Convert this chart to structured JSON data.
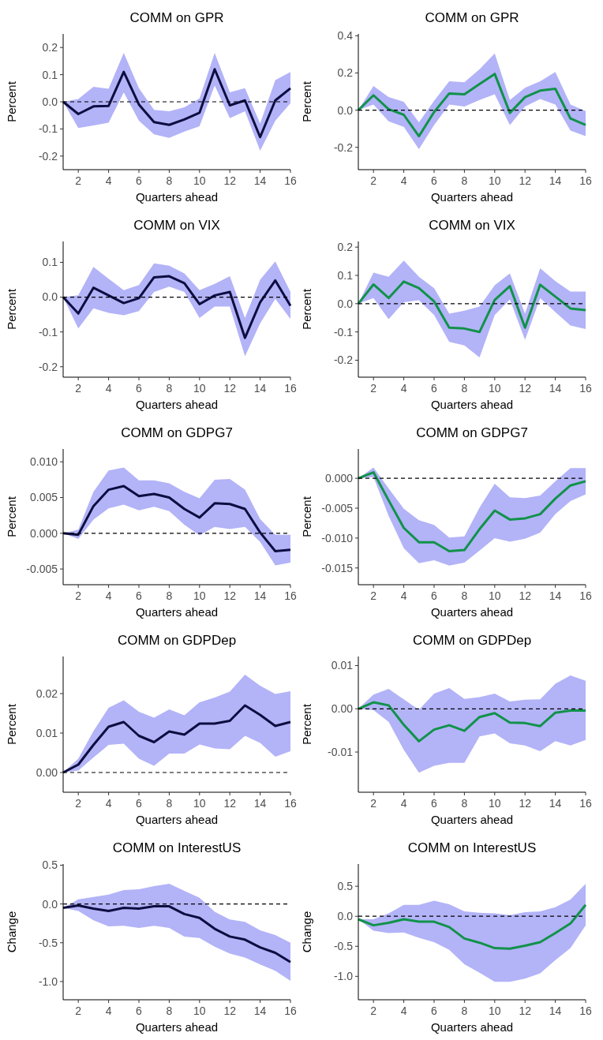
{
  "chart_data": [
    {
      "type": "line",
      "title": "COMM on GPR",
      "xlabel": "Quarters ahead",
      "ylabel": "Percent",
      "x": [
        1,
        2,
        3,
        4,
        5,
        6,
        7,
        8,
        9,
        10,
        11,
        12,
        13,
        14,
        15,
        16
      ],
      "xlim": [
        1,
        16
      ],
      "xticks": [
        2,
        4,
        6,
        8,
        10,
        12,
        14,
        16
      ],
      "ylim": [
        -0.25,
        0.25
      ],
      "yticks": [
        -0.2,
        -0.1,
        {
          "value": 0,
          "label": "0.0"
        },
        0.1,
        0.2
      ],
      "ref_lines": [
        {
          "axis": "y",
          "value": 0,
          "line_style": "dashed"
        }
      ],
      "series": [
        {
          "color": "#0d0d40",
          "values": [
            0,
            -0.045,
            -0.017,
            -0.015,
            0.11,
            -0.01,
            -0.075,
            -0.085,
            -0.065,
            -0.04,
            0.12,
            -0.013,
            0.005,
            -0.13,
            0.005,
            0.05
          ],
          "lower": [
            0,
            -0.097,
            -0.087,
            -0.077,
            0.035,
            -0.07,
            -0.12,
            -0.133,
            -0.11,
            -0.09,
            0.06,
            -0.06,
            -0.035,
            -0.18,
            -0.07,
            -0.005
          ],
          "upper": [
            0,
            0.01,
            0.055,
            0.048,
            0.18,
            0.05,
            -0.03,
            -0.035,
            -0.02,
            0.012,
            0.18,
            0.035,
            0.05,
            -0.08,
            0.08,
            0.11
          ]
        }
      ]
    },
    {
      "type": "line",
      "title": "COMM on GPR",
      "xlabel": "Quarters ahead",
      "ylabel": "Percent",
      "x": [
        1,
        2,
        3,
        4,
        5,
        6,
        7,
        8,
        9,
        10,
        11,
        12,
        13,
        14,
        15,
        16
      ],
      "xlim": [
        1,
        16
      ],
      "xticks": [
        2,
        4,
        6,
        8,
        10,
        12,
        14,
        16
      ],
      "ylim": [
        -0.32,
        0.41
      ],
      "yticks": [
        -0.2,
        {
          "value": 0,
          "label": "0.0"
        },
        0.2,
        0.4
      ],
      "ref_lines": [
        {
          "axis": "y",
          "value": 0,
          "line_style": "dashed"
        }
      ],
      "series": [
        {
          "color": "#11924a",
          "values": [
            0,
            0.08,
            0.005,
            -0.025,
            -0.14,
            -0.01,
            0.09,
            0.085,
            0.14,
            0.195,
            -0.015,
            0.07,
            0.105,
            0.115,
            -0.045,
            -0.08
          ],
          "lower": [
            0,
            0.03,
            -0.06,
            -0.09,
            -0.21,
            -0.08,
            0.03,
            0.02,
            0.055,
            0.085,
            -0.08,
            0.02,
            0.06,
            0.03,
            -0.11,
            -0.14
          ],
          "upper": [
            0,
            0.13,
            0.07,
            0.045,
            -0.065,
            0.05,
            0.155,
            0.15,
            0.22,
            0.305,
            0.055,
            0.12,
            0.155,
            0.205,
            0.03,
            -0.005
          ]
        }
      ]
    },
    {
      "type": "line",
      "title": "COMM on VIX",
      "xlabel": "Quarters ahead",
      "ylabel": "Percent",
      "x": [
        1,
        2,
        3,
        4,
        5,
        6,
        7,
        8,
        9,
        10,
        11,
        12,
        13,
        14,
        15,
        16
      ],
      "xlim": [
        1,
        16
      ],
      "xticks": [
        2,
        4,
        6,
        8,
        10,
        12,
        14,
        16
      ],
      "ylim": [
        -0.23,
        0.16
      ],
      "yticks": [
        -0.2,
        -0.1,
        {
          "value": 0,
          "label": "0.0"
        },
        0.1
      ],
      "ref_lines": [
        {
          "axis": "y",
          "value": 0,
          "line_style": "dashed"
        }
      ],
      "series": [
        {
          "color": "#0d0d40",
          "values": [
            0,
            -0.047,
            0.027,
            0.005,
            -0.017,
            -0.003,
            0.057,
            0.06,
            0.04,
            -0.02,
            0.005,
            0.015,
            -0.117,
            -0.015,
            0.048,
            -0.025
          ],
          "lower": [
            0,
            -0.09,
            -0.032,
            -0.045,
            -0.052,
            -0.04,
            0.015,
            0.03,
            0.015,
            -0.06,
            -0.027,
            -0.027,
            -0.17,
            -0.075,
            -0.005,
            -0.063
          ],
          "upper": [
            0,
            0.005,
            0.087,
            0.053,
            0.02,
            0.035,
            0.097,
            0.09,
            0.068,
            0.02,
            0.038,
            0.06,
            -0.06,
            0.05,
            0.103,
            0.015
          ]
        }
      ]
    },
    {
      "type": "line",
      "title": "COMM on VIX",
      "xlabel": "Quarters ahead",
      "ylabel": "Percent",
      "x": [
        1,
        2,
        3,
        4,
        5,
        6,
        7,
        8,
        9,
        10,
        11,
        12,
        13,
        14,
        15,
        16
      ],
      "xlim": [
        1,
        16
      ],
      "xticks": [
        2,
        4,
        6,
        8,
        10,
        12,
        14,
        16
      ],
      "ylim": [
        -0.26,
        0.22
      ],
      "yticks": [
        -0.2,
        -0.1,
        {
          "value": 0,
          "label": "0.0"
        },
        0.1,
        0.2
      ],
      "ref_lines": [
        {
          "axis": "y",
          "value": 0,
          "line_style": "dashed"
        }
      ],
      "series": [
        {
          "color": "#11924a",
          "values": [
            0,
            0.068,
            0.02,
            0.078,
            0.055,
            0.008,
            -0.085,
            -0.088,
            -0.1,
            0.013,
            0.062,
            -0.085,
            0.067,
            0.025,
            -0.017,
            -0.023
          ],
          "lower": [
            0,
            0.02,
            -0.055,
            0.005,
            0.012,
            -0.04,
            -0.135,
            -0.148,
            -0.19,
            -0.04,
            0.015,
            -0.128,
            0.02,
            -0.03,
            -0.077,
            -0.09
          ],
          "upper": [
            0,
            0.11,
            0.095,
            0.152,
            0.095,
            0.055,
            -0.035,
            -0.025,
            -0.01,
            0.065,
            0.107,
            -0.035,
            0.125,
            0.08,
            0.043,
            0.043
          ]
        }
      ]
    },
    {
      "type": "line",
      "title": "COMM on GDPG7",
      "xlabel": "Quarters ahead",
      "ylabel": "Percent",
      "x": [
        1,
        2,
        3,
        4,
        5,
        6,
        7,
        8,
        9,
        10,
        11,
        12,
        13,
        14,
        15,
        16
      ],
      "xlim": [
        1,
        16
      ],
      "xticks": [
        2,
        4,
        6,
        8,
        10,
        12,
        14,
        16
      ],
      "ylim": [
        -0.0072,
        0.0118
      ],
      "yticks": [
        -0.005,
        {
          "value": 0,
          "label": "0.000"
        },
        0.005,
        {
          "value": 0.01,
          "label": "0.010"
        }
      ],
      "ref_lines": [
        {
          "axis": "y",
          "value": 0,
          "line_style": "dashed"
        }
      ],
      "series": [
        {
          "color": "#0d0d40",
          "values": [
            0,
            -0.0002,
            0.0038,
            0.0061,
            0.0066,
            0.0052,
            0.0055,
            0.005,
            0.0034,
            0.0022,
            0.0042,
            0.0041,
            0.0034,
            0.0001,
            -0.0025,
            -0.0023
          ],
          "lower": [
            0,
            -0.0008,
            0.0019,
            0.0035,
            0.004,
            0.0032,
            0.0037,
            0.0031,
            0.0012,
            -0.0003,
            0.0009,
            0.0006,
            0.0009,
            -0.0012,
            -0.0045,
            -0.0041
          ],
          "upper": [
            0,
            0.0005,
            0.0058,
            0.0088,
            0.0092,
            0.0074,
            0.0074,
            0.007,
            0.0058,
            0.0049,
            0.0075,
            0.0076,
            0.0061,
            0.002,
            -0.0002,
            -0.0002
          ]
        }
      ]
    },
    {
      "type": "line",
      "title": "COMM on GDPG7",
      "xlabel": "Quarters ahead",
      "ylabel": "Percent",
      "x": [
        1,
        2,
        3,
        4,
        5,
        6,
        7,
        8,
        9,
        10,
        11,
        12,
        13,
        14,
        15,
        16
      ],
      "xlim": [
        1,
        16
      ],
      "xticks": [
        2,
        4,
        6,
        8,
        10,
        12,
        14,
        16
      ],
      "ylim": [
        -0.0178,
        0.0049
      ],
      "yticks": [
        -0.015,
        {
          "value": -0.01,
          "label": "-0.010"
        },
        -0.005,
        {
          "value": 0,
          "label": "0.000"
        }
      ],
      "ref_lines": [
        {
          "axis": "y",
          "value": 0,
          "line_style": "dashed"
        }
      ],
      "series": [
        {
          "color": "#11924a",
          "values": [
            0,
            0.001,
            -0.0037,
            -0.0083,
            -0.0107,
            -0.0107,
            -0.0122,
            -0.012,
            -0.0085,
            -0.0054,
            -0.0069,
            -0.0067,
            -0.006,
            -0.0034,
            -0.0012,
            -0.0005
          ],
          "lower": [
            0,
            0.0002,
            -0.0063,
            -0.0117,
            -0.0142,
            -0.0137,
            -0.0146,
            -0.0141,
            -0.0121,
            -0.01,
            -0.0106,
            -0.0101,
            -0.0091,
            -0.006,
            -0.0038,
            -0.0027
          ],
          "upper": [
            0,
            0.0018,
            -0.0017,
            -0.0051,
            -0.007,
            -0.0078,
            -0.0099,
            -0.0097,
            -0.0049,
            -0.0009,
            -0.0032,
            -0.0033,
            -0.0029,
            -0.0005,
            0.0017,
            0.0017
          ]
        }
      ]
    },
    {
      "type": "line",
      "title": "COMM on GDPDep",
      "xlabel": "Quarters ahead",
      "ylabel": "Percent",
      "x": [
        1,
        2,
        3,
        4,
        5,
        6,
        7,
        8,
        9,
        10,
        11,
        12,
        13,
        14,
        15,
        16
      ],
      "xlim": [
        1,
        16
      ],
      "xticks": [
        2,
        4,
        6,
        8,
        10,
        12,
        14,
        16
      ],
      "ylim": [
        -0.005,
        0.0294
      ],
      "yticks": [
        {
          "value": 0,
          "label": "0.00"
        },
        0.01,
        0.02
      ],
      "ref_lines": [
        {
          "axis": "y",
          "value": 0,
          "line_style": "dashed"
        }
      ],
      "series": [
        {
          "color": "#0d0d40",
          "values": [
            0,
            0.002,
            0.007,
            0.0116,
            0.0128,
            0.0093,
            0.0077,
            0.0104,
            0.0096,
            0.0124,
            0.0124,
            0.0131,
            0.017,
            0.0146,
            0.0118,
            0.0128
          ],
          "lower": [
            0,
            0.0005,
            0.0038,
            0.007,
            0.0073,
            0.0035,
            0.0017,
            0.0048,
            0.0048,
            0.0071,
            0.0061,
            0.0059,
            0.0093,
            0.0075,
            0.004,
            0.0054
          ],
          "upper": [
            0,
            0.0035,
            0.0105,
            0.0164,
            0.0183,
            0.0154,
            0.0139,
            0.016,
            0.0145,
            0.0178,
            0.019,
            0.0205,
            0.0248,
            0.022,
            0.0199,
            0.0206
          ]
        }
      ]
    },
    {
      "type": "line",
      "title": "COMM on GDPDep",
      "xlabel": "Quarters ahead",
      "ylabel": "Percent",
      "x": [
        1,
        2,
        3,
        4,
        5,
        6,
        7,
        8,
        9,
        10,
        11,
        12,
        13,
        14,
        15,
        16
      ],
      "xlim": [
        1,
        16
      ],
      "xticks": [
        2,
        4,
        6,
        8,
        10,
        12,
        14,
        16
      ],
      "ylim": [
        -0.0193,
        0.0121
      ],
      "yticks": [
        -0.01,
        {
          "value": 0,
          "label": "0.00"
        },
        0.01
      ],
      "ref_lines": [
        {
          "axis": "y",
          "value": 0,
          "line_style": "dashed"
        }
      ],
      "series": [
        {
          "color": "#11924a",
          "values": [
            0,
            0.0015,
            0.0008,
            -0.0037,
            -0.0075,
            -0.0048,
            -0.0038,
            -0.0051,
            -0.0019,
            -0.001,
            -0.0032,
            -0.0033,
            -0.004,
            -0.0009,
            -0.0004,
            -0.0004
          ],
          "lower": [
            0,
            -0.0003,
            -0.003,
            -0.0095,
            -0.0148,
            -0.0132,
            -0.0125,
            -0.0125,
            -0.0064,
            -0.0057,
            -0.008,
            -0.0085,
            -0.0098,
            -0.0075,
            -0.0085,
            -0.0072
          ],
          "upper": [
            0,
            0.0033,
            0.0046,
            0.0022,
            -0.0002,
            0.0035,
            0.0048,
            0.0023,
            0.0027,
            0.0035,
            0.0017,
            0.0021,
            0.0022,
            0.0058,
            0.0077,
            0.0065
          ]
        }
      ]
    },
    {
      "type": "line",
      "title": "COMM on InterestUS",
      "xlabel": "Quarters ahead",
      "ylabel": "Change",
      "x": [
        1,
        2,
        3,
        4,
        5,
        6,
        7,
        8,
        9,
        10,
        11,
        12,
        13,
        14,
        15,
        16
      ],
      "xlim": [
        1,
        16
      ],
      "xticks": [
        2,
        4,
        6,
        8,
        10,
        12,
        14,
        16
      ],
      "ylim": [
        -1.235,
        0.515
      ],
      "yticks": [
        {
          "value": -1,
          "label": "-1.0"
        },
        -0.5,
        {
          "value": 0,
          "label": "0.0"
        },
        0.5
      ],
      "ref_lines": [
        {
          "axis": "y",
          "value": 0,
          "line_style": "dashed"
        }
      ],
      "series": [
        {
          "color": "#0d0d40",
          "values": [
            -0.05,
            -0.02,
            -0.06,
            -0.09,
            -0.05,
            -0.06,
            -0.03,
            -0.03,
            -0.13,
            -0.18,
            -0.32,
            -0.42,
            -0.46,
            -0.56,
            -0.63,
            -0.75
          ],
          "lower": [
            -0.05,
            -0.09,
            -0.21,
            -0.29,
            -0.28,
            -0.31,
            -0.28,
            -0.31,
            -0.42,
            -0.44,
            -0.55,
            -0.64,
            -0.69,
            -0.78,
            -0.86,
            -0.99
          ],
          "upper": [
            -0.05,
            0.06,
            0.09,
            0.12,
            0.18,
            0.19,
            0.23,
            0.26,
            0.17,
            0.08,
            -0.1,
            -0.2,
            -0.23,
            -0.34,
            -0.4,
            -0.5
          ]
        }
      ]
    },
    {
      "type": "line",
      "title": "COMM on InterestUS",
      "xlabel": "Quarters ahead",
      "ylabel": "Change",
      "x": [
        1,
        2,
        3,
        4,
        5,
        6,
        7,
        8,
        9,
        10,
        11,
        12,
        13,
        14,
        15,
        16
      ],
      "xlim": [
        1,
        16
      ],
      "xticks": [
        2,
        4,
        6,
        8,
        10,
        12,
        14,
        16
      ],
      "ylim": [
        -1.39,
        0.87
      ],
      "yticks": [
        {
          "value": -1,
          "label": "-1.0"
        },
        -0.5,
        {
          "value": 0,
          "label": "0.0"
        },
        0.5
      ],
      "ref_lines": [
        {
          "axis": "y",
          "value": 0,
          "line_style": "dashed"
        }
      ],
      "series": [
        {
          "color": "#11924a",
          "values": [
            -0.05,
            -0.15,
            -0.11,
            -0.05,
            -0.09,
            -0.09,
            -0.18,
            -0.37,
            -0.44,
            -0.53,
            -0.54,
            -0.49,
            -0.43,
            -0.28,
            -0.12,
            0.19
          ],
          "lower": [
            -0.05,
            -0.24,
            -0.28,
            -0.27,
            -0.36,
            -0.43,
            -0.56,
            -0.8,
            -0.94,
            -1.09,
            -1.09,
            -1.04,
            -0.95,
            -0.73,
            -0.53,
            -0.15
          ],
          "upper": [
            -0.05,
            -0.05,
            0.05,
            0.19,
            0.19,
            0.26,
            0.2,
            0.08,
            0.06,
            0.05,
            0.02,
            0.07,
            0.08,
            0.15,
            0.28,
            0.54
          ]
        }
      ]
    }
  ]
}
